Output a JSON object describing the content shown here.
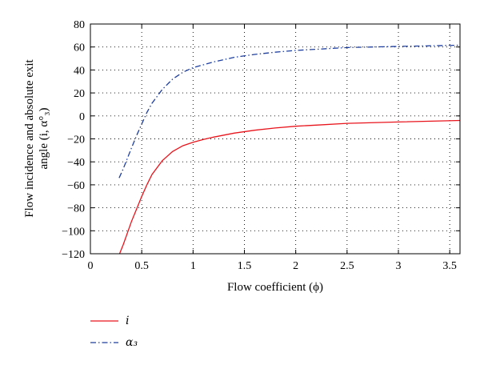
{
  "chart_data": {
    "type": "line",
    "xlabel": "Flow coefficient (ϕ)",
    "ylabel_line1": "Flow incidence and absolute exit",
    "ylabel_line2": "angle (i, α°₃)",
    "xlim": [
      0,
      3.6
    ],
    "ylim": [
      -120,
      80
    ],
    "xticks": [
      0,
      0.5,
      1,
      1.5,
      2,
      2.5,
      3,
      3.5
    ],
    "xtick_labels": [
      "0",
      "0.5",
      "1",
      "1.5",
      "2",
      "2.5",
      "3",
      "3.5"
    ],
    "yticks": [
      80,
      60,
      40,
      20,
      0,
      -20,
      -40,
      -60,
      -80,
      -100,
      -120
    ],
    "ytick_labels": [
      "80",
      "60",
      "40",
      "20",
      "0",
      "−20",
      "−40",
      "−60",
      "−80",
      "−100",
      "−120"
    ],
    "grid": true,
    "legend_position": "below-left",
    "series": [
      {
        "name": "i",
        "color": "#e8141c",
        "style": "solid",
        "x": [
          0.28,
          0.32,
          0.36,
          0.4,
          0.45,
          0.5,
          0.55,
          0.6,
          0.7,
          0.8,
          0.9,
          1.0,
          1.1,
          1.2,
          1.4,
          1.6,
          1.8,
          2.0,
          2.2,
          2.5,
          3.0,
          3.6
        ],
        "y": [
          -121,
          -112,
          -102,
          -92,
          -81,
          -70,
          -60,
          -51,
          -39,
          -31,
          -26,
          -23,
          -20.5,
          -18.5,
          -15,
          -12.5,
          -10.5,
          -9,
          -8,
          -6.5,
          -5.3,
          -4
        ]
      },
      {
        "name": "α₃",
        "color": "#1f3f9e",
        "style": "dashdot",
        "x": [
          0.28,
          0.32,
          0.36,
          0.4,
          0.45,
          0.5,
          0.55,
          0.6,
          0.7,
          0.8,
          0.9,
          1.0,
          1.2,
          1.4,
          1.6,
          1.8,
          2.0,
          2.5,
          3.0,
          3.6
        ],
        "y": [
          -54,
          -46,
          -37,
          -28,
          -17,
          -7,
          3,
          11,
          23,
          32,
          38,
          42,
          47,
          51,
          53.5,
          55.5,
          57,
          59.5,
          60.5,
          61.5
        ]
      }
    ]
  }
}
